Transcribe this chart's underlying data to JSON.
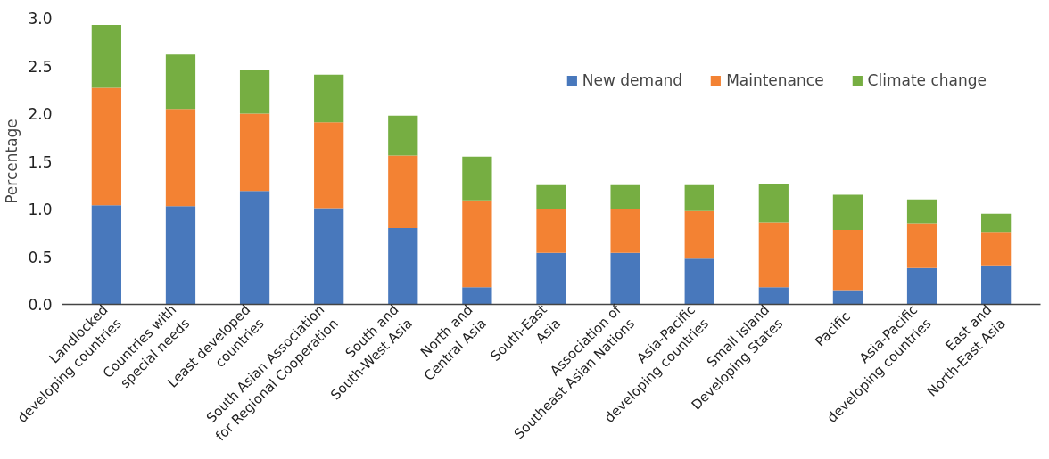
{
  "chart_data": {
    "type": "bar",
    "stacked": true,
    "ylabel": "Percentage",
    "categories": [
      "Landlocked developing countries",
      "Countries with special needs",
      "Least developed countries",
      "South Asian Association for Regional Cooperation",
      "South and South-West Asia",
      "North and Central Asia",
      "South-East Asia",
      "Association of Southeast Asian Nations",
      "Asia-Pacific developing countries",
      "Small Island Developing States",
      "Pacific",
      "Asia-Pacific developing countries",
      "East and North-East Asia"
    ],
    "series": [
      {
        "name": "New demand",
        "color": "#4878bc",
        "values": [
          1.04,
          1.03,
          1.19,
          1.01,
          0.8,
          0.18,
          0.54,
          0.54,
          0.48,
          0.18,
          0.15,
          0.38,
          0.41
        ]
      },
      {
        "name": "Maintenance",
        "color": "#f38233",
        "values": [
          1.23,
          1.02,
          0.81,
          0.9,
          0.76,
          0.91,
          0.46,
          0.46,
          0.5,
          0.68,
          0.63,
          0.47,
          0.35
        ]
      },
      {
        "name": "Climate change",
        "color": "#76ae42",
        "values": [
          0.66,
          0.57,
          0.46,
          0.5,
          0.42,
          0.46,
          0.25,
          0.25,
          0.27,
          0.4,
          0.37,
          0.25,
          0.19
        ]
      }
    ],
    "ylim": [
      0,
      3.0
    ],
    "yticks": [
      {
        "value": 0,
        "label": "0.0"
      },
      {
        "value": 0.5,
        "label": "0.5"
      },
      {
        "value": 1,
        "label": "1.0"
      },
      {
        "value": 1.5,
        "label": "1.5"
      },
      {
        "value": 2,
        "label": "2.0"
      },
      {
        "value": 2.5,
        "label": "2.5"
      },
      {
        "value": 3,
        "label": "3.0"
      }
    ],
    "grid": false,
    "legend": "top right"
  }
}
